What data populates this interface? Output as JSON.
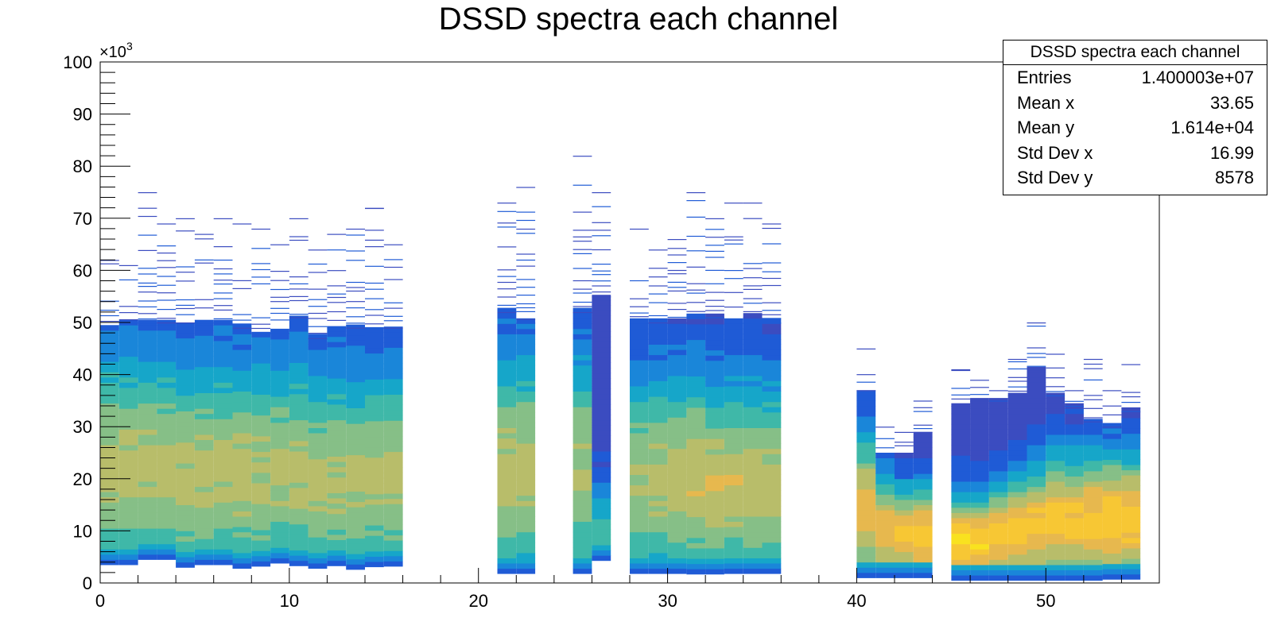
{
  "chart_data": {
    "type": "heatmap",
    "title": "DSSD spectra each channel",
    "xlabel": "",
    "ylabel": "",
    "xlim": [
      0,
      56
    ],
    "ylim": [
      0,
      100000
    ],
    "y_multiplier": "×10",
    "y_multiplier_exp": "3",
    "x_ticks": [
      "0",
      "10",
      "20",
      "30",
      "40",
      "50"
    ],
    "y_ticks": [
      "0",
      "10",
      "20",
      "30",
      "40",
      "50",
      "60",
      "70",
      "80",
      "90",
      "100"
    ],
    "colormap": [
      "#3b4cc0",
      "#1f5bd6",
      "#1a86d9",
      "#16a6c9",
      "#3fb8a8",
      "#86bf87",
      "#b8bd6a",
      "#e7b84e",
      "#f7c734",
      "#f9e21f"
    ],
    "channels": [
      {
        "ch": 0,
        "bulk_lo": 3500,
        "bulk_hi": 49000,
        "tail_max": 62000,
        "peak": 22000,
        "intensity": 0.65
      },
      {
        "ch": 1,
        "bulk_lo": 3500,
        "bulk_hi": 50000,
        "tail_max": 61000,
        "peak": 22000,
        "intensity": 0.65
      },
      {
        "ch": 2,
        "bulk_lo": 4500,
        "bulk_hi": 50000,
        "tail_max": 75000,
        "peak": 22000,
        "intensity": 0.65
      },
      {
        "ch": 3,
        "bulk_lo": 4500,
        "bulk_hi": 50000,
        "tail_max": 69000,
        "peak": 22000,
        "intensity": 0.65
      },
      {
        "ch": 4,
        "bulk_lo": 3000,
        "bulk_hi": 50000,
        "tail_max": 70000,
        "peak": 21000,
        "intensity": 0.65
      },
      {
        "ch": 5,
        "bulk_lo": 3500,
        "bulk_hi": 50000,
        "tail_max": 67000,
        "peak": 21000,
        "intensity": 0.65
      },
      {
        "ch": 6,
        "bulk_lo": 3500,
        "bulk_hi": 50000,
        "tail_max": 70000,
        "peak": 21000,
        "intensity": 0.65
      },
      {
        "ch": 7,
        "bulk_lo": 2800,
        "bulk_hi": 49000,
        "tail_max": 69000,
        "peak": 21000,
        "intensity": 0.65
      },
      {
        "ch": 8,
        "bulk_lo": 3200,
        "bulk_hi": 48000,
        "tail_max": 68000,
        "peak": 21000,
        "intensity": 0.65
      },
      {
        "ch": 9,
        "bulk_lo": 3800,
        "bulk_hi": 48000,
        "tail_max": 65000,
        "peak": 21000,
        "intensity": 0.65
      },
      {
        "ch": 10,
        "bulk_lo": 3300,
        "bulk_hi": 51000,
        "tail_max": 70000,
        "peak": 21000,
        "intensity": 0.65
      },
      {
        "ch": 11,
        "bulk_lo": 2800,
        "bulk_hi": 47000,
        "tail_max": 64000,
        "peak": 20000,
        "intensity": 0.65
      },
      {
        "ch": 12,
        "bulk_lo": 3300,
        "bulk_hi": 49000,
        "tail_max": 67000,
        "peak": 20000,
        "intensity": 0.65
      },
      {
        "ch": 13,
        "bulk_lo": 2600,
        "bulk_hi": 49000,
        "tail_max": 68000,
        "peak": 20000,
        "intensity": 0.65
      },
      {
        "ch": 14,
        "bulk_lo": 3100,
        "bulk_hi": 49000,
        "tail_max": 72000,
        "peak": 20000,
        "intensity": 0.65
      },
      {
        "ch": 15,
        "bulk_lo": 3200,
        "bulk_hi": 49000,
        "tail_max": 65000,
        "peak": 20000,
        "intensity": 0.65
      },
      {
        "ch": 21,
        "bulk_lo": 1800,
        "bulk_hi": 52000,
        "tail_max": 73000,
        "peak": 22000,
        "intensity": 0.65
      },
      {
        "ch": 22,
        "bulk_lo": 1800,
        "bulk_hi": 50000,
        "tail_max": 76000,
        "peak": 22000,
        "intensity": 0.65
      },
      {
        "ch": 25,
        "bulk_lo": 1800,
        "bulk_hi": 52000,
        "tail_max": 82000,
        "peak": 22000,
        "intensity": 0.6
      },
      {
        "ch": 26,
        "bulk_lo": 4300,
        "bulk_hi": 55000,
        "tail_max": 75000,
        "peak": 9000,
        "intensity": 0.45
      },
      {
        "ch": 28,
        "bulk_lo": 1800,
        "bulk_hi": 50000,
        "tail_max": 68000,
        "peak": 20000,
        "intensity": 0.62
      },
      {
        "ch": 29,
        "bulk_lo": 1800,
        "bulk_hi": 50000,
        "tail_max": 64000,
        "peak": 20000,
        "intensity": 0.64
      },
      {
        "ch": 30,
        "bulk_lo": 1800,
        "bulk_hi": 50000,
        "tail_max": 66000,
        "peak": 20000,
        "intensity": 0.68
      },
      {
        "ch": 31,
        "bulk_lo": 1700,
        "bulk_hi": 51000,
        "tail_max": 75000,
        "peak": 20000,
        "intensity": 0.7
      },
      {
        "ch": 32,
        "bulk_lo": 1700,
        "bulk_hi": 51000,
        "tail_max": 70000,
        "peak": 19000,
        "intensity": 0.7
      },
      {
        "ch": 33,
        "bulk_lo": 1800,
        "bulk_hi": 50000,
        "tail_max": 73000,
        "peak": 19000,
        "intensity": 0.7
      },
      {
        "ch": 34,
        "bulk_lo": 1800,
        "bulk_hi": 51000,
        "tail_max": 73000,
        "peak": 19000,
        "intensity": 0.68
      },
      {
        "ch": 35,
        "bulk_lo": 1800,
        "bulk_hi": 50000,
        "tail_max": 69000,
        "peak": 19000,
        "intensity": 0.66
      },
      {
        "ch": 40,
        "bulk_lo": 1000,
        "bulk_hi": 37000,
        "tail_max": 45000,
        "peak": 14000,
        "intensity": 0.78
      },
      {
        "ch": 41,
        "bulk_lo": 1000,
        "bulk_hi": 25000,
        "tail_max": 30000,
        "peak": 10000,
        "intensity": 0.82
      },
      {
        "ch": 42,
        "bulk_lo": 1000,
        "bulk_hi": 25000,
        "tail_max": 29000,
        "peak": 9000,
        "intensity": 0.85
      },
      {
        "ch": 43,
        "bulk_lo": 1000,
        "bulk_hi": 29000,
        "tail_max": 35000,
        "peak": 9000,
        "intensity": 0.9
      },
      {
        "ch": 45,
        "bulk_lo": 500,
        "bulk_hi": 34000,
        "tail_max": 41000,
        "peak": 8000,
        "intensity": 0.95
      },
      {
        "ch": 46,
        "bulk_lo": 500,
        "bulk_hi": 35000,
        "tail_max": 39000,
        "peak": 8000,
        "intensity": 0.92
      },
      {
        "ch": 47,
        "bulk_lo": 500,
        "bulk_hi": 35000,
        "tail_max": 37000,
        "peak": 9000,
        "intensity": 0.88
      },
      {
        "ch": 48,
        "bulk_lo": 500,
        "bulk_hi": 36000,
        "tail_max": 43000,
        "peak": 10000,
        "intensity": 0.88
      },
      {
        "ch": 49,
        "bulk_lo": 500,
        "bulk_hi": 41000,
        "tail_max": 50000,
        "peak": 11000,
        "intensity": 0.85
      },
      {
        "ch": 50,
        "bulk_lo": 500,
        "bulk_hi": 36000,
        "tail_max": 44000,
        "peak": 12000,
        "intensity": 0.85
      },
      {
        "ch": 51,
        "bulk_lo": 500,
        "bulk_hi": 34000,
        "tail_max": 37000,
        "peak": 12000,
        "intensity": 0.85
      },
      {
        "ch": 52,
        "bulk_lo": 500,
        "bulk_hi": 31000,
        "tail_max": 43000,
        "peak": 12000,
        "intensity": 0.88
      },
      {
        "ch": 53,
        "bulk_lo": 700,
        "bulk_hi": 30000,
        "tail_max": 37000,
        "peak": 12000,
        "intensity": 0.9
      },
      {
        "ch": 54,
        "bulk_lo": 700,
        "bulk_hi": 33000,
        "tail_max": 42000,
        "peak": 12000,
        "intensity": 0.9
      }
    ]
  },
  "stats": {
    "title": "DSSD spectra each channel",
    "rows": [
      {
        "label": "Entries",
        "value": "1.400003e+07"
      },
      {
        "label": "Mean x",
        "value": "33.65"
      },
      {
        "label": "Mean y",
        "value": "1.614e+04"
      },
      {
        "label": "Std Dev x",
        "value": "16.99"
      },
      {
        "label": "Std Dev y",
        "value": "8578"
      }
    ]
  }
}
